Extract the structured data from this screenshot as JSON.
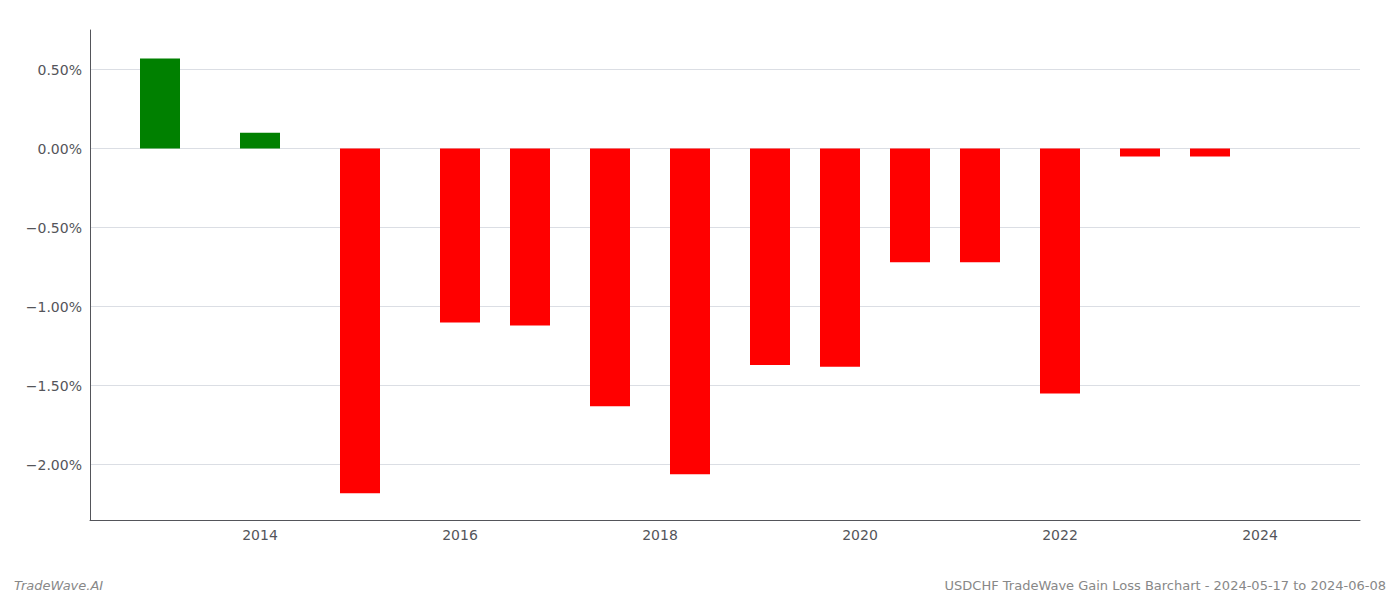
{
  "chart_data": {
    "type": "bar",
    "x": [
      2013,
      2014,
      2015,
      2016,
      2016.7,
      2017.5,
      2018.3,
      2019.1,
      2019.8,
      2020.5,
      2021.2,
      2022.0,
      2022.8,
      2023.5
    ],
    "values": [
      0.57,
      0.1,
      -2.18,
      -1.1,
      -1.12,
      -1.63,
      -2.06,
      -1.37,
      -1.38,
      -0.72,
      -0.72,
      -1.55,
      -0.05,
      -0.05
    ],
    "colors": [
      "#008000",
      "#008000",
      "#ff0000",
      "#ff0000",
      "#ff0000",
      "#ff0000",
      "#ff0000",
      "#ff0000",
      "#ff0000",
      "#ff0000",
      "#ff0000",
      "#ff0000",
      "#ff0000",
      "#ff0000"
    ],
    "xlim": [
      2012.3,
      2025.0
    ],
    "xticks": [
      2014,
      2016,
      2018,
      2020,
      2022,
      2024
    ],
    "ylim": [
      -2.35,
      0.75
    ],
    "yticks": [
      {
        "value": 0.5,
        "label": "0.50%"
      },
      {
        "value": 0.0,
        "label": "0.00%"
      },
      {
        "value": -0.5,
        "label": "−0.50%"
      },
      {
        "value": -1.0,
        "label": "−1.00%"
      },
      {
        "value": -1.5,
        "label": "−1.50%"
      },
      {
        "value": -2.0,
        "label": "−2.00%"
      }
    ],
    "grid": true,
    "annotations": [
      "TradeWave.AI",
      "USDCHF TradeWave Gain Loss Barchart - 2024-05-17 to 2024-06-08"
    ]
  }
}
